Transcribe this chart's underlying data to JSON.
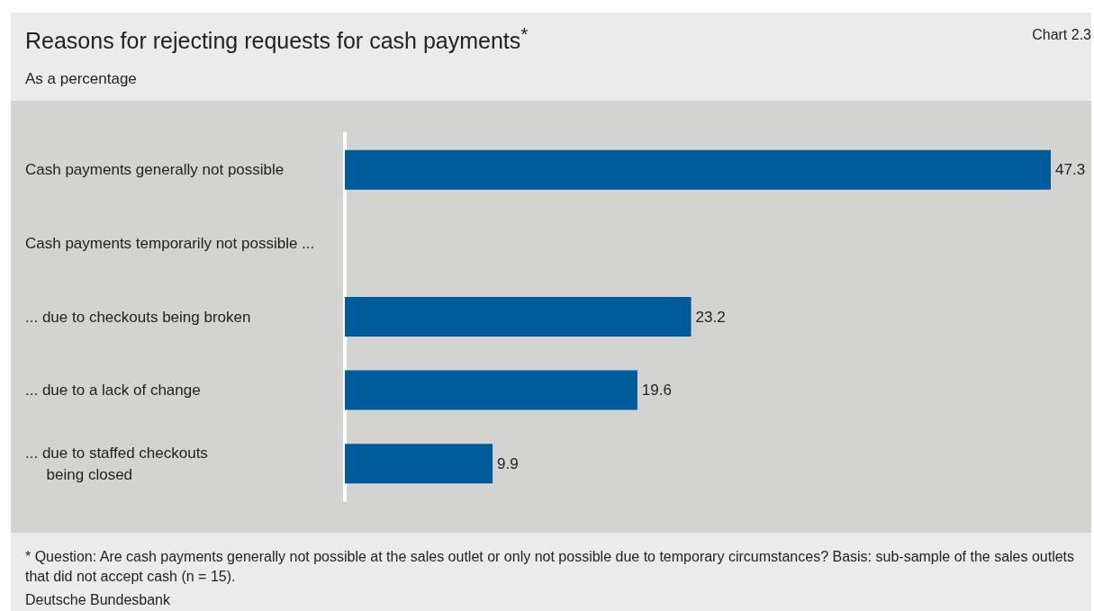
{
  "chart_data": {
    "type": "bar",
    "orientation": "horizontal",
    "title": "Reasons for rejecting requests for cash payments$^{*}$",
    "subtitle": "As a percentage",
    "categories": [
      "Cash payments generally not possible",
      "Cash payments temporarily not possible ...",
      "... due to checkouts being broken",
      "... due to a lack of change",
      "... due to staffed checkouts\n     being closed"
    ],
    "values": [
      47.3,
      null,
      23.2,
      19.6,
      9.9
    ],
    "color": "#005b9a",
    "data_labels": true,
    "annotations": [
      "Chart 2.3",
      "* Question: Are cash payments generally not possible at the sales outlet or only not possible due to temporary circumstances? Basis: sub-sample of the sales outlets that did not accept cash (n = 15).",
      "Deutsche Bundesbank"
    ]
  }
}
